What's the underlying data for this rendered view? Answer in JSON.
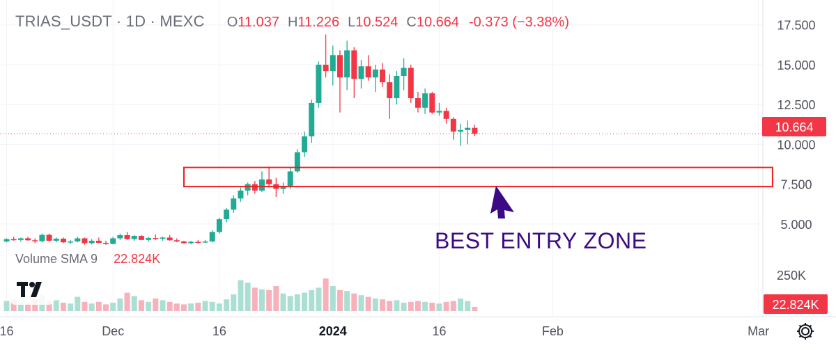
{
  "header": {
    "symbol": "TRIAS_USDT · 1D · MEXC",
    "o_label": "O",
    "o_value": "11.037",
    "h_label": "H",
    "h_value": "11.226",
    "l_label": "L",
    "l_value": "10.524",
    "c_label": "C",
    "c_value": "10.664",
    "change": "-0.373 (−3.38%)"
  },
  "volume_legend": {
    "title": "Volume SMA 9",
    "value": "22.824K"
  },
  "annotation": {
    "text": "BEST ENTRY ZONE"
  },
  "last_price_label": "10.664",
  "volume_axis_label": "22.824K",
  "icons": {
    "logo": "tradingview-logo-icon",
    "settings": "gear-icon"
  },
  "colors": {
    "up": "#22ab94",
    "down": "#f23645",
    "zone": "#ee1c1c",
    "annotation": "#3b0a84",
    "volume_up": "#acdfd4",
    "volume_down": "#f7b1ba"
  },
  "chart_data": [
    {
      "type": "candlestick",
      "title": "TRIAS_USDT · 1D · MEXC",
      "y_ticks": [
        "5.000",
        "7.500",
        "10.000",
        "12.500",
        "15.000",
        "17.500"
      ],
      "ylim": [
        2.9,
        18.1
      ],
      "x_ticks": [
        {
          "label": "16",
          "day": 0
        },
        {
          "label": "Dec",
          "day": 15
        },
        {
          "label": "16",
          "day": 30
        },
        {
          "label": "2024",
          "day": 46
        },
        {
          "label": "16",
          "day": 61
        },
        {
          "label": "Feb",
          "day": 77
        },
        {
          "label": "Mar",
          "day": 106
        }
      ],
      "last_price": 10.664,
      "zone": {
        "day_from": 25,
        "day_to": 108,
        "price_low": 7.35,
        "price_high": 8.55
      },
      "arrow": {
        "day": 69,
        "price": 7.4
      },
      "candles": [
        [
          3.9,
          4.1,
          3.85,
          4.05
        ],
        [
          4.05,
          4.2,
          3.95,
          4.0
        ],
        [
          4.0,
          4.15,
          3.9,
          4.1
        ],
        [
          4.1,
          4.2,
          3.95,
          3.98
        ],
        [
          3.98,
          4.1,
          3.8,
          3.92
        ],
        [
          3.92,
          4.4,
          3.85,
          4.32
        ],
        [
          4.32,
          4.4,
          3.9,
          3.95
        ],
        [
          3.95,
          4.15,
          3.85,
          4.08
        ],
        [
          4.08,
          4.15,
          3.8,
          3.85
        ],
        [
          3.85,
          4.0,
          3.75,
          3.9
        ],
        [
          3.9,
          4.2,
          3.85,
          4.1
        ],
        [
          4.1,
          4.15,
          3.7,
          3.8
        ],
        [
          3.8,
          4.05,
          3.72,
          3.95
        ],
        [
          3.95,
          4.15,
          3.8,
          3.82
        ],
        [
          3.82,
          3.95,
          3.7,
          3.75
        ],
        [
          3.75,
          4.2,
          3.72,
          4.1
        ],
        [
          4.1,
          4.4,
          4.0,
          4.3
        ],
        [
          4.3,
          4.5,
          4.0,
          4.05
        ],
        [
          4.05,
          4.3,
          3.95,
          4.25
        ],
        [
          4.25,
          4.3,
          3.98,
          4.0
        ],
        [
          4.0,
          4.2,
          3.9,
          4.12
        ],
        [
          4.12,
          4.35,
          4.0,
          4.08
        ],
        [
          4.08,
          4.2,
          3.95,
          4.15
        ],
        [
          4.15,
          4.3,
          3.95,
          3.98
        ],
        [
          3.98,
          4.1,
          3.85,
          3.9
        ],
        [
          3.9,
          3.95,
          3.75,
          3.8
        ],
        [
          3.8,
          3.95,
          3.72,
          3.88
        ],
        [
          3.88,
          4.0,
          3.78,
          3.85
        ],
        [
          3.85,
          4.0,
          3.8,
          3.9
        ],
        [
          3.9,
          4.6,
          3.85,
          4.5
        ],
        [
          4.5,
          5.4,
          4.4,
          5.3
        ],
        [
          5.3,
          6.0,
          5.1,
          5.9
        ],
        [
          5.9,
          6.8,
          5.7,
          6.6
        ],
        [
          6.6,
          7.3,
          6.4,
          7.1
        ],
        [
          7.1,
          7.6,
          6.8,
          7.5
        ],
        [
          7.5,
          7.7,
          6.9,
          7.1
        ],
        [
          7.1,
          8.3,
          7.0,
          7.8
        ],
        [
          7.8,
          8.6,
          7.3,
          7.5
        ],
        [
          7.5,
          7.9,
          6.7,
          7.2
        ],
        [
          7.2,
          7.6,
          6.9,
          7.4
        ],
        [
          7.4,
          8.5,
          7.2,
          8.3
        ],
        [
          8.3,
          9.7,
          8.2,
          9.5
        ],
        [
          9.5,
          10.8,
          9.2,
          10.5
        ],
        [
          10.5,
          12.8,
          10.1,
          12.6
        ],
        [
          12.6,
          15.2,
          12.3,
          15.0
        ],
        [
          15.0,
          16.9,
          14.2,
          14.6
        ],
        [
          14.6,
          16.2,
          13.7,
          15.6
        ],
        [
          15.6,
          15.9,
          12.0,
          14.2
        ],
        [
          14.2,
          16.5,
          13.4,
          15.9
        ],
        [
          15.9,
          16.1,
          12.9,
          14.1
        ],
        [
          14.1,
          15.3,
          13.5,
          14.9
        ],
        [
          14.9,
          15.6,
          14.0,
          14.2
        ],
        [
          14.2,
          15.0,
          13.3,
          14.7
        ],
        [
          14.7,
          15.1,
          13.6,
          13.9
        ],
        [
          13.9,
          14.4,
          11.6,
          12.9
        ],
        [
          12.9,
          14.6,
          12.5,
          14.3
        ],
        [
          14.3,
          15.4,
          13.4,
          14.8
        ],
        [
          14.8,
          15.0,
          12.6,
          12.9
        ],
        [
          12.9,
          13.3,
          12.0,
          12.3
        ],
        [
          12.3,
          13.5,
          11.9,
          13.2
        ],
        [
          13.2,
          13.3,
          11.9,
          12.0
        ],
        [
          12.0,
          12.6,
          11.8,
          12.1
        ],
        [
          12.1,
          12.3,
          11.3,
          11.6
        ],
        [
          11.6,
          11.7,
          10.3,
          10.8
        ],
        [
          10.8,
          11.3,
          9.9,
          10.9
        ],
        [
          10.9,
          11.5,
          10.0,
          11.037
        ],
        [
          11.037,
          11.226,
          10.524,
          10.664
        ]
      ],
      "volume_ticks": [
        "250K"
      ],
      "volume_max": 300,
      "volumes": [
        60,
        70,
        55,
        45,
        70,
        95,
        60,
        65,
        50,
        45,
        85,
        55,
        45,
        55,
        40,
        50,
        75,
        110,
        90,
        65,
        55,
        75,
        65,
        55,
        45,
        40,
        45,
        50,
        60,
        55,
        45,
        70,
        100,
        185,
        170,
        140,
        130,
        125,
        150,
        105,
        90,
        100,
        110,
        125,
        140,
        195,
        150,
        125,
        120,
        105,
        95,
        85,
        75,
        70,
        60,
        65,
        50,
        55,
        60,
        55,
        50,
        45,
        55,
        60,
        75,
        60,
        25
      ],
      "volume_sma": 22.824
    }
  ]
}
